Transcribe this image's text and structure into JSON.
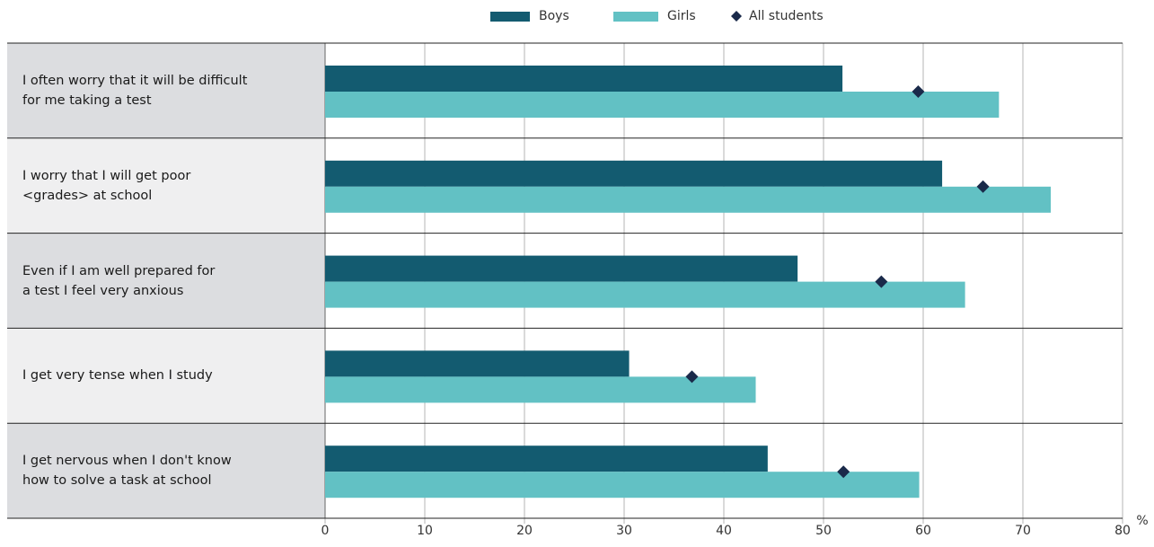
{
  "chart_data": {
    "type": "bar",
    "orientation": "horizontal",
    "categories": [
      "I often worry that it will be difficult\nfor me taking a test",
      "I worry that I will get poor\n<grades> at school",
      "Even if I am well prepared for\na test I feel very anxious",
      "I get very tense when I study",
      "I get nervous when I don't know\nhow to solve a task at school"
    ],
    "series": [
      {
        "name": "Boys",
        "color": "#135b70",
        "values": [
          51.9,
          61.9,
          47.4,
          30.5,
          44.4
        ]
      },
      {
        "name": "Girls",
        "color": "#62c1c4",
        "values": [
          67.6,
          72.8,
          64.2,
          43.2,
          59.6
        ]
      },
      {
        "name": "All students",
        "color": "#1a2a4a",
        "marker": "diamond",
        "values": [
          59.5,
          66.0,
          55.8,
          36.8,
          52.0
        ]
      }
    ],
    "xlim": [
      0,
      80
    ],
    "xticks": [
      0,
      10,
      20,
      30,
      40,
      50,
      60,
      70,
      80
    ],
    "x_unit": "%",
    "grid": true
  }
}
